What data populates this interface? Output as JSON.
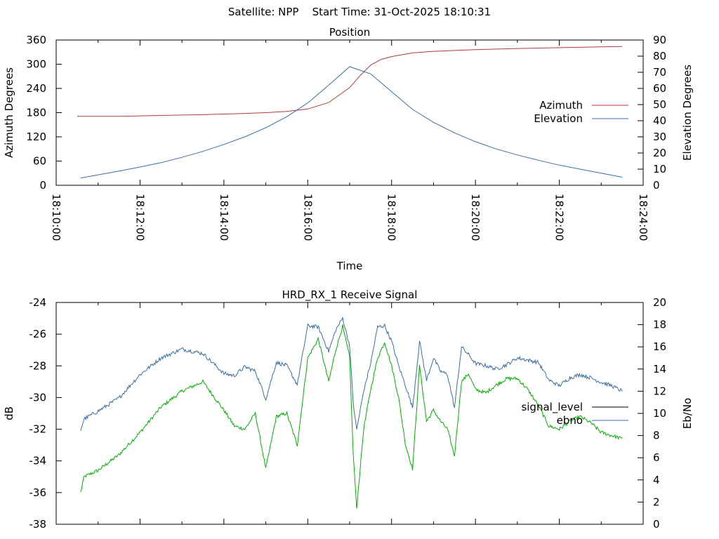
{
  "header": {
    "satellite_label": "Satellite: NPP",
    "start_time_label": "Start Time: 31-Oct-2025 18:10:31"
  },
  "colors": {
    "azimuth": "#b03a3a",
    "elevation": "#3a6ea5",
    "signal_level": "#00b000",
    "ebno": "#3a6ea5",
    "axis": "#000000"
  },
  "chart_data": [
    {
      "type": "line",
      "title": "Position",
      "xlabel": "Time",
      "ylabel": "Azimuth Degrees",
      "y2label": "Elevation Degrees",
      "xlim": [
        "18:10:00",
        "18:24:00"
      ],
      "xticks": [
        "18:10:00",
        "18:12:00",
        "18:14:00",
        "18:16:00",
        "18:18:00",
        "18:20:00",
        "18:22:00",
        "18:24:00"
      ],
      "ylim": [
        0,
        360
      ],
      "yticks": [
        0,
        60,
        120,
        180,
        240,
        300,
        360
      ],
      "y2lim": [
        0,
        90
      ],
      "y2ticks": [
        0,
        10,
        20,
        30,
        40,
        50,
        60,
        70,
        80,
        90
      ],
      "grid": false,
      "legend_position": "right",
      "series": [
        {
          "name": "Azimuth",
          "axis": "left",
          "x": [
            "18:10:30",
            "18:11:30",
            "18:12:30",
            "18:13:30",
            "18:14:30",
            "18:15:00",
            "18:15:30",
            "18:16:00",
            "18:16:30",
            "18:17:00",
            "18:17:15",
            "18:17:30",
            "18:17:45",
            "18:18:00",
            "18:18:30",
            "18:19:00",
            "18:20:00",
            "18:21:00",
            "18:22:00",
            "18:23:00",
            "18:23:30"
          ],
          "values": [
            171,
            171,
            173,
            175,
            178,
            180,
            183,
            189,
            205,
            242,
            272,
            298,
            312,
            319,
            328,
            332,
            336,
            339,
            341,
            343,
            344
          ]
        },
        {
          "name": "Elevation",
          "axis": "right",
          "x": [
            "18:10:35",
            "18:11:00",
            "18:11:30",
            "18:12:00",
            "18:12:30",
            "18:13:00",
            "18:13:30",
            "18:14:00",
            "18:14:30",
            "18:15:00",
            "18:15:30",
            "18:16:00",
            "18:16:30",
            "18:17:00",
            "18:17:30",
            "18:18:00",
            "18:18:30",
            "18:19:00",
            "18:19:30",
            "18:20:00",
            "18:20:30",
            "18:21:00",
            "18:21:30",
            "18:22:00",
            "18:22:30",
            "18:23:00",
            "18:23:30"
          ],
          "values": [
            4.5,
            6.5,
            8.8,
            11.3,
            14,
            17.3,
            21,
            25.3,
            30,
            35.7,
            42.5,
            51,
            62,
            73.5,
            69,
            58,
            47,
            39,
            32.5,
            27,
            22.5,
            18.8,
            15.5,
            12.5,
            10,
            7.5,
            5
          ]
        }
      ]
    },
    {
      "type": "line",
      "title": "HRD_RX_1 Receive Signal",
      "xlabel": "",
      "ylabel": "dB",
      "y2label": "Eb/No",
      "xlim": [
        "18:10:00",
        "18:24:00"
      ],
      "ylim": [
        -38,
        -24
      ],
      "yticks": [
        -38,
        -36,
        -34,
        -32,
        -30,
        -28,
        -26,
        -24
      ],
      "y2lim": [
        0,
        20
      ],
      "y2ticks": [
        0,
        2,
        4,
        6,
        8,
        10,
        12,
        14,
        16,
        18,
        20
      ],
      "grid": false,
      "legend_position": "right",
      "series": [
        {
          "name": "signal_level",
          "axis": "left",
          "x": [
            "18:10:35",
            "18:10:40",
            "18:11:00",
            "18:11:30",
            "18:12:00",
            "18:12:30",
            "18:13:00",
            "18:13:30",
            "18:14:00",
            "18:14:15",
            "18:14:30",
            "18:14:45",
            "18:15:00",
            "18:15:15",
            "18:15:30",
            "18:15:45",
            "18:16:00",
            "18:16:15",
            "18:16:30",
            "18:16:40",
            "18:16:50",
            "18:17:00",
            "18:17:05",
            "18:17:10",
            "18:17:20",
            "18:17:30",
            "18:17:40",
            "18:17:50",
            "18:18:00",
            "18:18:10",
            "18:18:20",
            "18:18:30",
            "18:18:40",
            "18:18:50",
            "18:19:00",
            "18:19:10",
            "18:19:20",
            "18:19:30",
            "18:19:40",
            "18:19:50",
            "18:20:00",
            "18:20:15",
            "18:20:30",
            "18:20:45",
            "18:21:00",
            "18:21:15",
            "18:21:30",
            "18:21:45",
            "18:22:00",
            "18:22:15",
            "18:22:30",
            "18:22:45",
            "18:23:00",
            "18:23:15",
            "18:23:30"
          ],
          "values": [
            -36.0,
            -35.0,
            -34.6,
            -33.6,
            -32.2,
            -30.6,
            -29.6,
            -29.0,
            -30.8,
            -31.8,
            -32.0,
            -31.0,
            -34.5,
            -31.2,
            -31.0,
            -33.0,
            -27.5,
            -26.3,
            -29.0,
            -27.0,
            -25.5,
            -27.5,
            -33.5,
            -37.0,
            -32.0,
            -29.5,
            -27.5,
            -26.5,
            -28.0,
            -30.0,
            -33.0,
            -34.5,
            -28.0,
            -31.5,
            -30.8,
            -31.5,
            -32.0,
            -33.7,
            -29.0,
            -28.5,
            -29.5,
            -29.7,
            -29.2,
            -28.8,
            -28.8,
            -29.5,
            -30.5,
            -31.8,
            -32.0,
            -31.5,
            -31.2,
            -31.6,
            -32.2,
            -32.4,
            -32.6
          ]
        },
        {
          "name": "ebno",
          "axis": "right",
          "x": [
            "18:10:35",
            "18:10:40",
            "18:11:00",
            "18:11:30",
            "18:12:00",
            "18:12:30",
            "18:13:00",
            "18:13:30",
            "18:14:00",
            "18:14:15",
            "18:14:30",
            "18:14:45",
            "18:15:00",
            "18:15:15",
            "18:15:30",
            "18:15:45",
            "18:16:00",
            "18:16:15",
            "18:16:30",
            "18:16:40",
            "18:16:50",
            "18:17:00",
            "18:17:05",
            "18:17:10",
            "18:17:20",
            "18:17:30",
            "18:17:40",
            "18:17:50",
            "18:18:00",
            "18:18:10",
            "18:18:20",
            "18:18:30",
            "18:18:40",
            "18:18:50",
            "18:19:00",
            "18:19:10",
            "18:19:20",
            "18:19:30",
            "18:19:40",
            "18:19:50",
            "18:20:00",
            "18:20:15",
            "18:20:30",
            "18:20:45",
            "18:21:00",
            "18:21:15",
            "18:21:30",
            "18:21:45",
            "18:22:00",
            "18:22:15",
            "18:22:30",
            "18:22:45",
            "18:23:00",
            "18:23:15",
            "18:23:30"
          ],
          "values": [
            8.5,
            9.5,
            10.2,
            11.4,
            13.5,
            15.0,
            15.8,
            15.4,
            13.6,
            13.4,
            14.2,
            13.8,
            11.3,
            14.6,
            14.3,
            12.6,
            17.9,
            17.8,
            15.6,
            17.5,
            18.6,
            16.1,
            11.0,
            8.5,
            12.0,
            14.5,
            17.8,
            17.9,
            16.5,
            14.3,
            12.5,
            10.5,
            16.5,
            13.0,
            15.0,
            13.8,
            13.5,
            10.5,
            16.0,
            15.3,
            14.5,
            14.3,
            14.0,
            14.4,
            15.0,
            14.8,
            14.6,
            13.0,
            12.5,
            13.2,
            13.5,
            13.2,
            12.8,
            12.5,
            12.0
          ]
        }
      ]
    }
  ]
}
